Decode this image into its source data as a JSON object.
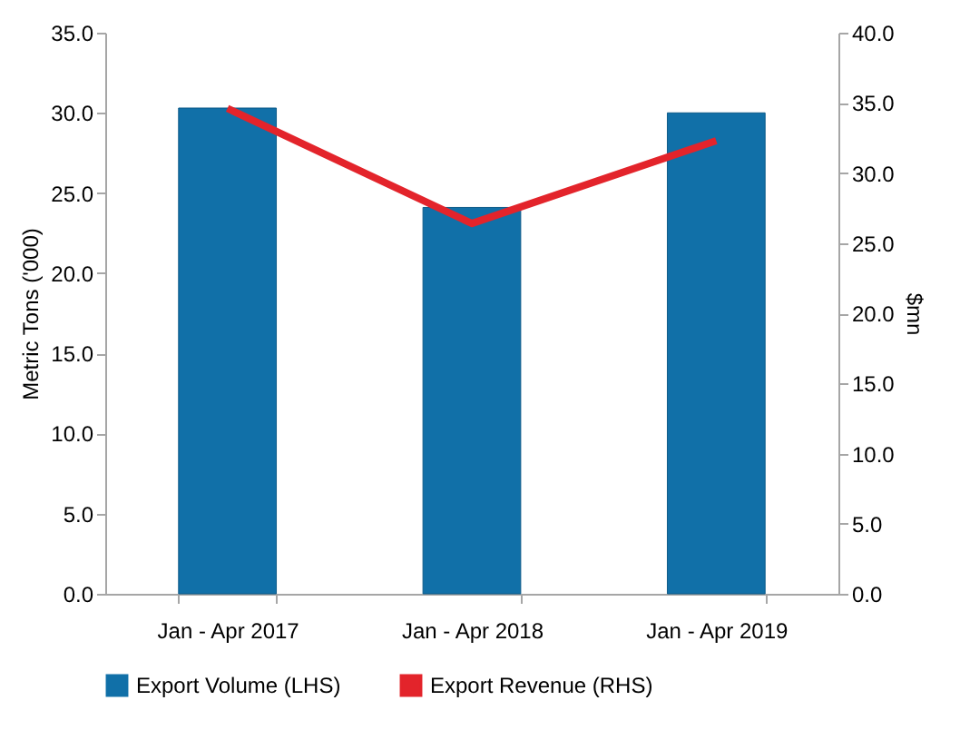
{
  "chart_data": {
    "type": "bar",
    "categories": [
      "Jan - Apr 2017",
      "Jan - Apr 2018",
      "Jan - Apr 2019"
    ],
    "series": [
      {
        "name": "Export Volume (LHS)",
        "color": "#1170a8",
        "values": [
          30.3,
          24.1,
          30.0
        ]
      },
      {
        "name": "Export Revenue (RHS)",
        "type": "line",
        "color": "#e3242b",
        "axis": "y2",
        "values": [
          34.6,
          26.4,
          32.3
        ]
      }
    ],
    "ylabel": "Metric Tons ('000)",
    "y2label": "$mn",
    "ylim": [
      0,
      35
    ],
    "yticks": [
      {
        "value": 0,
        "label": "0.0"
      },
      {
        "value": 5,
        "label": "5.0"
      },
      {
        "value": 10,
        "label": "10.0"
      },
      {
        "value": 15,
        "label": "15.0"
      },
      {
        "value": 20,
        "label": "20.0"
      },
      {
        "value": 25,
        "label": "25.0"
      },
      {
        "value": 30,
        "label": "30.0"
      },
      {
        "value": 35,
        "label": "35.0"
      }
    ],
    "y2lim": [
      0,
      40
    ],
    "y2ticks": [
      {
        "value": 0,
        "label": "0.0"
      },
      {
        "value": 5,
        "label": "5.0"
      },
      {
        "value": 10,
        "label": "10.0"
      },
      {
        "value": 15,
        "label": "15.0"
      },
      {
        "value": 20,
        "label": "20.0"
      },
      {
        "value": 25,
        "label": "25.0"
      },
      {
        "value": 30,
        "label": "30.0"
      },
      {
        "value": 35,
        "label": "35.0"
      },
      {
        "value": 40,
        "label": "40.0"
      }
    ],
    "grid": false,
    "legend": "bottom"
  }
}
